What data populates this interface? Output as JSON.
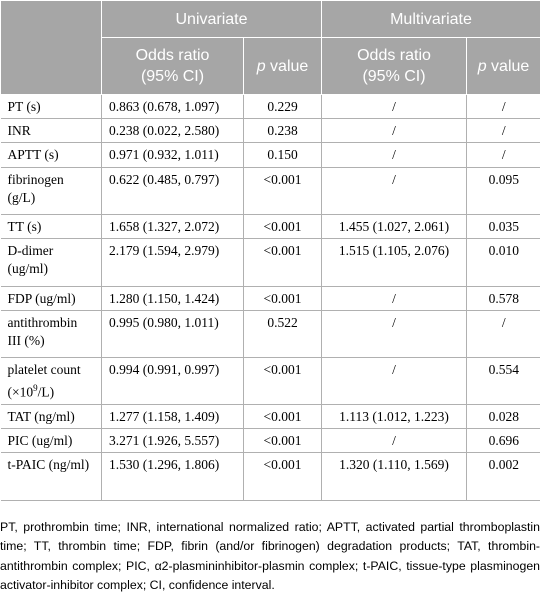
{
  "header": {
    "univariate": "Univariate",
    "multivariate": "Multivariate",
    "odds_ratio": "Odds ratio",
    "ci": "(95% CI)",
    "p_italic": "p",
    "p_rest": " value"
  },
  "rows": [
    {
      "label": "PT (s)",
      "uni_or": "0.863 (0.678, 1.097)",
      "uni_p": "0.229",
      "multi_or": "/",
      "multi_p": "/"
    },
    {
      "label": "INR",
      "uni_or": "0.238 (0.022, 2.580)",
      "uni_p": "0.238",
      "multi_or": "/",
      "multi_p": "/"
    },
    {
      "label": "APTT (s)",
      "uni_or": "0.971 (0.932, 1.011)",
      "uni_p": "0.150",
      "multi_or": "/",
      "multi_p": "/"
    },
    {
      "label": "fibrinogen (g/L)",
      "uni_or": "0.622 (0.485, 0.797)",
      "uni_p": "<0.001",
      "multi_or": "/",
      "multi_p": "0.095"
    },
    {
      "label": "TT (s)",
      "uni_or": "1.658 (1.327, 2.072)",
      "uni_p": "<0.001",
      "multi_or": "1.455 (1.027, 2.061)",
      "multi_p": "0.035"
    },
    {
      "label": "D-dimer (ug/ml)",
      "uni_or": "2.179 (1.594, 2.979)",
      "uni_p": "<0.001",
      "multi_or": "1.515 (1.105, 2.076)",
      "multi_p": "0.010"
    },
    {
      "label": "FDP (ug/ml)",
      "uni_or": "1.280 (1.150, 1.424)",
      "uni_p": "<0.001",
      "multi_or": "/",
      "multi_p": "0.578"
    },
    {
      "label": "antithrombin III (%)",
      "uni_or": "0.995 (0.980, 1.011)",
      "uni_p": "0.522",
      "multi_or": "/",
      "multi_p": "/"
    },
    {
      "label_main": "platelet count",
      "label_unit_pre": "(×10",
      "label_unit_sup": "9",
      "label_unit_post": "/L)",
      "uni_or": "0.994 (0.991, 0.997)",
      "uni_p": "<0.001",
      "multi_or": "/",
      "multi_p": "0.554"
    },
    {
      "label": "TAT (ng/ml)",
      "uni_or": "1.277 (1.158, 1.409)",
      "uni_p": "<0.001",
      "multi_or": "1.113 (1.012, 1.223)",
      "multi_p": "0.028"
    },
    {
      "label": "PIC (ug/ml)",
      "uni_or": "3.271 (1.926, 5.557)",
      "uni_p": "<0.001",
      "multi_or": "/",
      "multi_p": "0.696"
    },
    {
      "label": "t-PAIC (ng/ml)",
      "uni_or": "1.530 (1.296, 1.806)",
      "uni_p": "<0.001",
      "multi_or": "1.320 (1.110, 1.569)",
      "multi_p": "0.002"
    }
  ],
  "footnote": "PT, prothrombin time; INR, international normalized ratio; APTT, activated partial thromboplastin time; TT, thrombin time; FDP, fibrin (and/or fibrinogen) degradation products; TAT, thrombin-antithrombin complex; PIC, α2-plasmininhibitor-plasmin complex; t-PAIC, tissue-type plasminogen activator-inhibitor complex; CI, confidence interval.",
  "colors": {
    "header_bg": "#a6a6a6",
    "header_text": "#ffffff",
    "grid": "#b0b0b0"
  }
}
